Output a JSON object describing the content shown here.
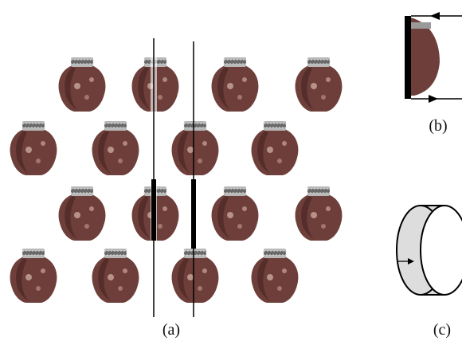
{
  "figure": {
    "labels": {
      "a": "(a)",
      "b": "(b)",
      "c": "(c)"
    }
  }
}
